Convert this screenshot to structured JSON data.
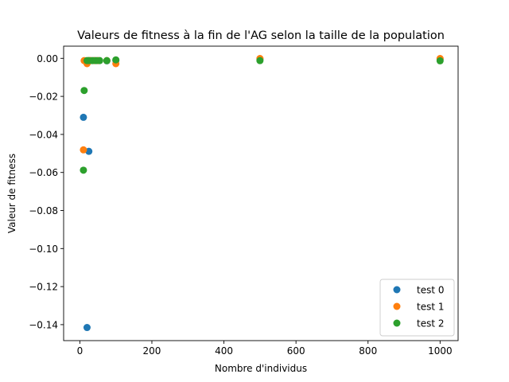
{
  "chart_data": {
    "type": "scatter",
    "title": "Valeurs de fitness à la fin de l'AG selon la taille de la population",
    "xlabel": "Nombre d'individus",
    "ylabel": "Valeur de fitness",
    "xlim": [
      -45,
      1050
    ],
    "ylim": [
      -0.1484,
      0.0064
    ],
    "xticks": [
      0,
      200,
      400,
      600,
      800,
      1000
    ],
    "xtick_labels": [
      "0",
      "200",
      "400",
      "600",
      "800",
      "1000"
    ],
    "yticks": [
      0.0,
      -0.02,
      -0.04,
      -0.06,
      -0.08,
      -0.1,
      -0.12,
      -0.14
    ],
    "ytick_labels": [
      "0.00",
      "−0.02",
      "−0.04",
      "−0.06",
      "−0.08",
      "−0.10",
      "−0.12",
      "−0.14"
    ],
    "grid": false,
    "legend_position": "lower-right",
    "series": [
      {
        "name": "test 0",
        "color": "#1f77b4",
        "points": [
          {
            "x": 10,
            "y": -0.031
          },
          {
            "x": 20,
            "y": -0.1415
          },
          {
            "x": 25,
            "y": -0.0489
          },
          {
            "x": 30,
            "y": -0.0012
          },
          {
            "x": 40,
            "y": -0.0012
          },
          {
            "x": 50,
            "y": -0.0012
          },
          {
            "x": 75,
            "y": -0.0013
          },
          {
            "x": 100,
            "y": -0.0011
          },
          {
            "x": 500,
            "y": -0.0004
          },
          {
            "x": 1000,
            "y": -0.0005
          }
        ]
      },
      {
        "name": "test 1",
        "color": "#ff7f0e",
        "points": [
          {
            "x": 10,
            "y": -0.0481
          },
          {
            "x": 12,
            "y": -0.0012
          },
          {
            "x": 20,
            "y": -0.0028
          },
          {
            "x": 25,
            "y": -0.0012
          },
          {
            "x": 30,
            "y": -0.0012
          },
          {
            "x": 40,
            "y": -0.0012
          },
          {
            "x": 50,
            "y": -0.0012
          },
          {
            "x": 75,
            "y": -0.0012
          },
          {
            "x": 100,
            "y": -0.0028
          },
          {
            "x": 500,
            "y": -0.0001
          },
          {
            "x": 1000,
            "y": -0.0001
          }
        ]
      },
      {
        "name": "test 2",
        "color": "#2ca02c",
        "points": [
          {
            "x": 10,
            "y": -0.0588
          },
          {
            "x": 12,
            "y": -0.0169
          },
          {
            "x": 20,
            "y": -0.0012
          },
          {
            "x": 25,
            "y": -0.0012
          },
          {
            "x": 35,
            "y": -0.0012
          },
          {
            "x": 45,
            "y": -0.0012
          },
          {
            "x": 55,
            "y": -0.0012
          },
          {
            "x": 75,
            "y": -0.0012
          },
          {
            "x": 100,
            "y": -0.0008
          },
          {
            "x": 500,
            "y": -0.0012
          },
          {
            "x": 1000,
            "y": -0.0013
          }
        ]
      }
    ]
  }
}
